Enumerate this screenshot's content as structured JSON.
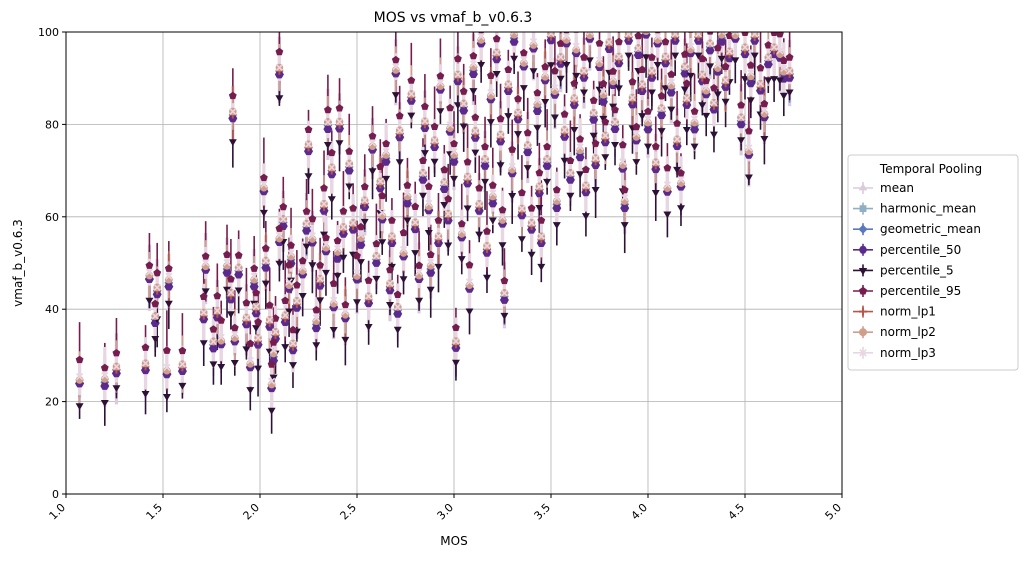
{
  "chart_data": {
    "type": "scatter",
    "title": "MOS vs vmaf_b_v0.6.3",
    "xlabel": "MOS",
    "ylabel": "vmaf_b_v0.6.3",
    "xlim": [
      1.0,
      5.0
    ],
    "ylim": [
      0,
      100
    ],
    "xticks": [
      "1.0",
      "1.5",
      "2.0",
      "2.5",
      "3.0",
      "3.5",
      "4.0",
      "4.5",
      "5.0"
    ],
    "yticks": [
      "0",
      "20",
      "40",
      "60",
      "80",
      "100"
    ],
    "grid": true,
    "legend": {
      "title": "Temporal Pooling",
      "placement": "outside-right"
    },
    "series": [
      {
        "name": "mean",
        "color": "#dccbdc",
        "marker": "triangle-up",
        "offset": 0
      },
      {
        "name": "harmonic_mean",
        "color": "#8fb0c4",
        "marker": "square",
        "offset": -0.5
      },
      {
        "name": "geometric_mean",
        "color": "#5c78bf",
        "marker": "diamond",
        "offset": -0.3
      },
      {
        "name": "percentile_50",
        "color": "#5a2b8c",
        "marker": "hexagon",
        "offset": -0.8
      },
      {
        "name": "percentile_5",
        "color": "#2d1137",
        "marker": "triangle-down",
        "offset": -5
      },
      {
        "name": "percentile_95",
        "color": "#761d4f",
        "marker": "pentagon",
        "offset": 3.5
      },
      {
        "name": "norm_lp1",
        "color": "#b5584a",
        "marker": "plus",
        "offset": 0.2
      },
      {
        "name": "norm_lp2",
        "color": "#d19e8c",
        "marker": "circle",
        "offset": 0.5
      },
      {
        "name": "norm_lp3",
        "color": "#e8d6e2",
        "marker": "x",
        "offset": 0.8
      }
    ],
    "points": [
      [
        1.07,
        24.5
      ],
      [
        1.2,
        24.5
      ],
      [
        1.26,
        27
      ],
      [
        1.41,
        27.5
      ],
      [
        1.43,
        47
      ],
      [
        1.46,
        38
      ],
      [
        1.47,
        44
      ],
      [
        1.52,
        26.5
      ],
      [
        1.53,
        46
      ],
      [
        1.6,
        27.5
      ],
      [
        1.71,
        38.5
      ],
      [
        1.72,
        49
      ],
      [
        1.76,
        32.5
      ],
      [
        1.78,
        39
      ],
      [
        1.8,
        33
      ],
      [
        1.83,
        49
      ],
      [
        1.85,
        43
      ],
      [
        1.86,
        82
      ],
      [
        1.87,
        33.5
      ],
      [
        1.89,
        48.5
      ],
      [
        1.93,
        37.5
      ],
      [
        1.95,
        28
      ],
      [
        1.97,
        46
      ],
      [
        1.98,
        40
      ],
      [
        1.99,
        33
      ],
      [
        2.02,
        66
      ],
      [
        2.03,
        50
      ],
      [
        2.05,
        37
      ],
      [
        2.06,
        23.5
      ],
      [
        2.07,
        30
      ],
      [
        2.08,
        34.5
      ],
      [
        2.1,
        91.5
      ],
      [
        2.1,
        55
      ],
      [
        2.12,
        59
      ],
      [
        2.13,
        38
      ],
      [
        2.15,
        45
      ],
      [
        2.16,
        51
      ],
      [
        2.17,
        32
      ],
      [
        2.19,
        41
      ],
      [
        2.22,
        48
      ],
      [
        2.24,
        58
      ],
      [
        2.25,
        75
      ],
      [
        2.27,
        55
      ],
      [
        2.29,
        37
      ],
      [
        2.31,
        46
      ],
      [
        2.33,
        62
      ],
      [
        2.34,
        53
      ],
      [
        2.35,
        80
      ],
      [
        2.37,
        70
      ],
      [
        2.38,
        41
      ],
      [
        2.4,
        52
      ],
      [
        2.41,
        80
      ],
      [
        2.43,
        57
      ],
      [
        2.44,
        38.5
      ],
      [
        2.46,
        71
      ],
      [
        2.48,
        58
      ],
      [
        2.5,
        47
      ],
      [
        2.52,
        55
      ],
      [
        2.54,
        63
      ],
      [
        2.56,
        42
      ],
      [
        2.58,
        75
      ],
      [
        2.6,
        51
      ],
      [
        2.62,
        67
      ],
      [
        2.63,
        60
      ],
      [
        2.65,
        73
      ],
      [
        2.67,
        45
      ],
      [
        2.68,
        55
      ],
      [
        2.7,
        91.5
      ],
      [
        2.71,
        40
      ],
      [
        2.72,
        78
      ],
      [
        2.74,
        52
      ],
      [
        2.76,
        64
      ],
      [
        2.78,
        86
      ],
      [
        2.8,
        58
      ],
      [
        2.82,
        47
      ],
      [
        2.84,
        69
      ],
      [
        2.85,
        80
      ],
      [
        2.87,
        62
      ],
      [
        2.88,
        49
      ],
      [
        2.9,
        76
      ],
      [
        2.92,
        55
      ],
      [
        2.93,
        88
      ],
      [
        2.95,
        67
      ],
      [
        2.97,
        60
      ],
      [
        2.98,
        79
      ],
      [
        3.0,
        73
      ],
      [
        3.01,
        32.5
      ],
      [
        3.02,
        90
      ],
      [
        3.04,
        56
      ],
      [
        3.05,
        84
      ],
      [
        3.07,
        68
      ],
      [
        3.08,
        45
      ],
      [
        3.1,
        92
      ],
      [
        3.11,
        78
      ],
      [
        3.13,
        62
      ],
      [
        3.14,
        98
      ],
      [
        3.16,
        72
      ],
      [
        3.17,
        53
      ],
      [
        3.19,
        86
      ],
      [
        3.2,
        64
      ],
      [
        3.22,
        95
      ],
      [
        3.24,
        77
      ],
      [
        3.25,
        59
      ],
      [
        3.26,
        43
      ],
      [
        3.28,
        88
      ],
      [
        3.3,
        70
      ],
      [
        3.31,
        99
      ],
      [
        3.33,
        82
      ],
      [
        3.35,
        61
      ],
      [
        3.36,
        93
      ],
      [
        3.38,
        75
      ],
      [
        3.4,
        58
      ],
      [
        3.41,
        97
      ],
      [
        3.43,
        84
      ],
      [
        3.44,
        66
      ],
      [
        3.45,
        55
      ],
      [
        3.47,
        90
      ],
      [
        3.48,
        72
      ],
      [
        3.5,
        99
      ],
      [
        3.52,
        87
      ],
      [
        3.53,
        63
      ],
      [
        3.55,
        94
      ],
      [
        3.57,
        78
      ],
      [
        3.58,
        98
      ],
      [
        3.6,
        69
      ],
      [
        3.62,
        85
      ],
      [
        3.63,
        96
      ],
      [
        3.65,
        74
      ],
      [
        3.67,
        91
      ],
      [
        3.68,
        66
      ],
      [
        3.7,
        99
      ],
      [
        3.72,
        82
      ],
      [
        3.73,
        72
      ],
      [
        3.75,
        93
      ],
      [
        3.77,
        86
      ],
      [
        3.78,
        77
      ],
      [
        3.8,
        97
      ],
      [
        3.82,
        89
      ],
      [
        3.83,
        80
      ],
      [
        3.85,
        94
      ],
      [
        3.87,
        71
      ],
      [
        3.88,
        63
      ],
      [
        3.9,
        99
      ],
      [
        3.92,
        85
      ],
      [
        3.94,
        77
      ],
      [
        3.95,
        96
      ],
      [
        3.97,
        88
      ],
      [
        3.99,
        100
      ],
      [
        4.0,
        80
      ],
      [
        4.02,
        91
      ],
      [
        4.04,
        71
      ],
      [
        4.05,
        98
      ],
      [
        4.07,
        83
      ],
      [
        4.09,
        94
      ],
      [
        4.1,
        66
      ],
      [
        4.12,
        88
      ],
      [
        4.14,
        99
      ],
      [
        4.15,
        76
      ],
      [
        4.17,
        67
      ],
      [
        4.19,
        92
      ],
      [
        4.2,
        85
      ],
      [
        4.22,
        96
      ],
      [
        4.24,
        80
      ],
      [
        4.26,
        99
      ],
      [
        4.28,
        90
      ],
      [
        4.3,
        87
      ],
      [
        4.32,
        97
      ],
      [
        4.34,
        84
      ],
      [
        4.36,
        92
      ],
      [
        4.38,
        99
      ],
      [
        4.4,
        89
      ],
      [
        4.42,
        95
      ],
      [
        4.45,
        99
      ],
      [
        4.48,
        81
      ],
      [
        4.5,
        96
      ],
      [
        4.52,
        74
      ],
      [
        4.53,
        90
      ],
      [
        4.55,
        99
      ],
      [
        4.58,
        88
      ],
      [
        4.6,
        82
      ],
      [
        4.62,
        94
      ],
      [
        4.65,
        96
      ],
      [
        4.68,
        95
      ],
      [
        4.7,
        91
      ],
      [
        4.73,
        91
      ]
    ]
  }
}
